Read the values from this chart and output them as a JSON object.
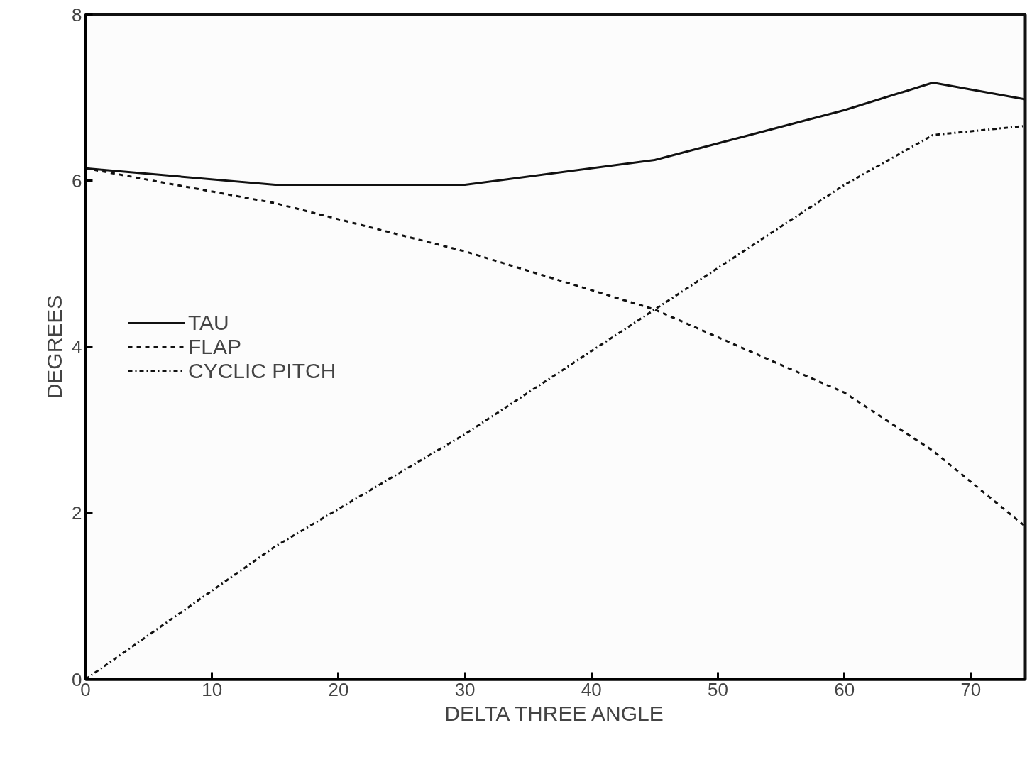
{
  "chart_data": {
    "type": "line",
    "xlabel": "DELTA THREE ANGLE",
    "ylabel": "DEGREES",
    "x": [
      0,
      15,
      30,
      45,
      60,
      67,
      74.3
    ],
    "series": [
      {
        "name": "TAU",
        "color": "#111111",
        "line_style": "solid",
        "values": [
          6.15,
          5.95,
          5.95,
          6.25,
          6.85,
          7.18,
          6.98
        ]
      },
      {
        "name": "FLAP",
        "color": "#111111",
        "line_style": "dashed",
        "values": [
          6.15,
          5.73,
          5.15,
          4.45,
          3.45,
          2.75,
          1.84
        ]
      },
      {
        "name": "CYCLIC PITCH",
        "color": "#111111",
        "line_style": "dashdot",
        "values": [
          0,
          1.6,
          2.95,
          4.45,
          5.95,
          6.55,
          6.66
        ]
      }
    ],
    "xlim": [
      0,
      74.3
    ],
    "ylim": [
      0,
      8
    ],
    "xticks": [
      0,
      10,
      20,
      30,
      40,
      50,
      60,
      70
    ],
    "yticks": [
      0,
      2,
      4,
      6,
      8
    ],
    "grid": false,
    "legend": "left",
    "marker": "none"
  }
}
